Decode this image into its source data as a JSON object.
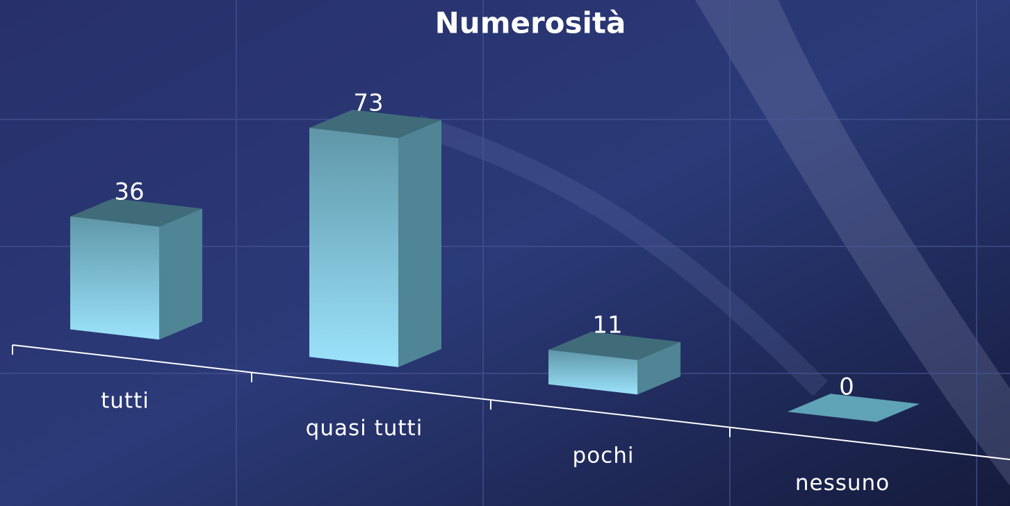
{
  "chart_data": {
    "type": "bar",
    "title": "Numerosità",
    "categories": [
      "tutti",
      "quasi tutti",
      "pochi",
      "nessuno"
    ],
    "values": [
      36,
      73,
      11,
      0
    ],
    "color": "#8fd3ee"
  }
}
